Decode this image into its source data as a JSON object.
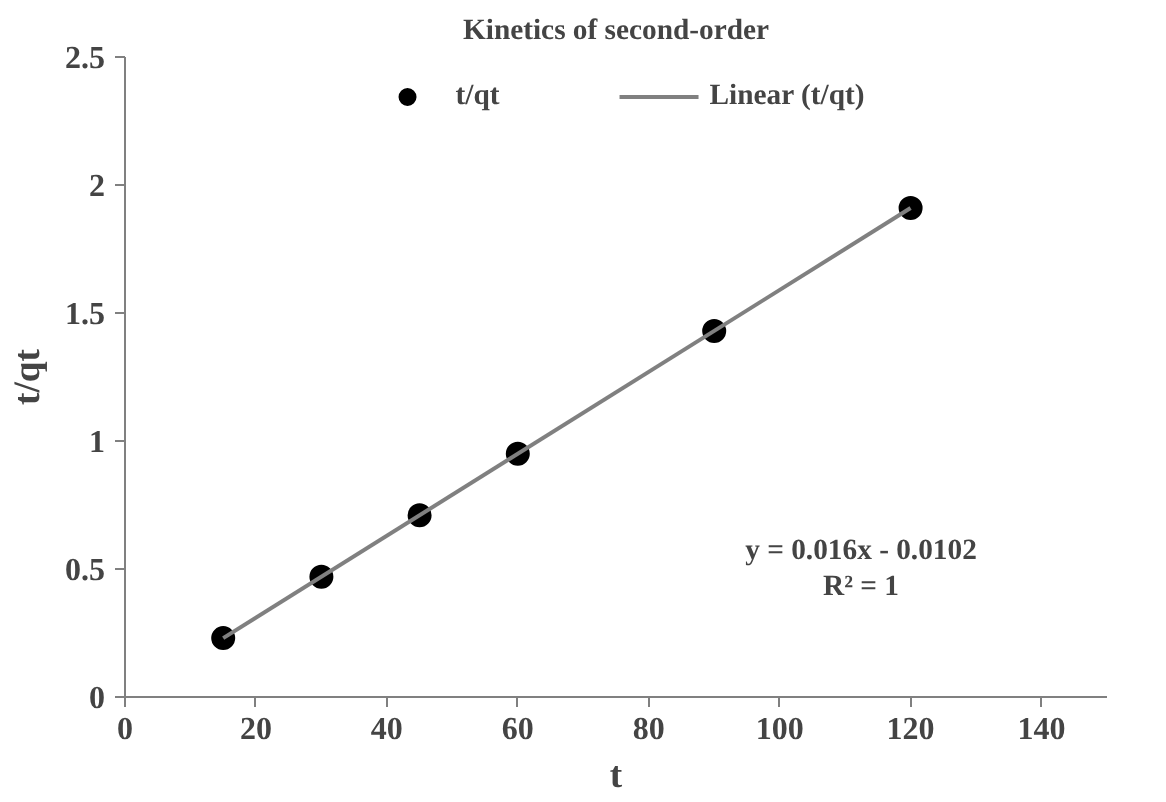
{
  "chart_data": {
    "type": "scatter",
    "title": "Kinetics of second-order",
    "xlabel": "t",
    "ylabel": "t/qt",
    "series": [
      {
        "name": "t/qt",
        "color": "#000000",
        "marker": "circle",
        "x": [
          15,
          30,
          45,
          60,
          90,
          120
        ],
        "values": [
          0.23,
          0.47,
          0.71,
          0.95,
          1.43,
          1.91
        ]
      },
      {
        "name": "Linear (t/qt)",
        "color": "#808080",
        "type": "line",
        "marker": "none",
        "x": [
          15,
          120
        ],
        "values": [
          0.23,
          1.91
        ]
      }
    ],
    "xlim": [
      0,
      150
    ],
    "xticks": [
      0,
      20,
      40,
      60,
      80,
      100,
      120,
      140
    ],
    "ylim": [
      0,
      2.5
    ],
    "yticks": [
      0,
      0.5,
      1,
      1.5,
      2,
      2.5
    ],
    "grid": false,
    "legend": "top",
    "annotations": [
      "y = 0.016x - 0.0102",
      "R² = 1"
    ]
  }
}
